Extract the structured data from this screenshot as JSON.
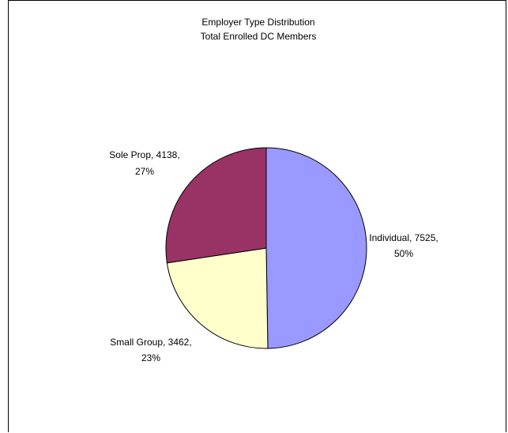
{
  "chart_data": {
    "type": "pie",
    "title_line1": "Employer Type Distribution",
    "title_line2": "Total Enrolled DC Members",
    "slices": [
      {
        "label": "Individual",
        "value": 7525,
        "percent": "50%",
        "color": "#9999FF",
        "label_line1": "Individual, 7525,",
        "label_line2": "50%"
      },
      {
        "label": "Small Group",
        "value": 3462,
        "percent": "23%",
        "color": "#FFFFCC",
        "label_line1": "Small Group, 3462,",
        "label_line2": "23%"
      },
      {
        "label": "Sole Prop",
        "value": 4138,
        "percent": "27%",
        "color": "#993366",
        "label_line1": "Sole Prop, 4138,",
        "label_line2": "27%"
      }
    ]
  }
}
